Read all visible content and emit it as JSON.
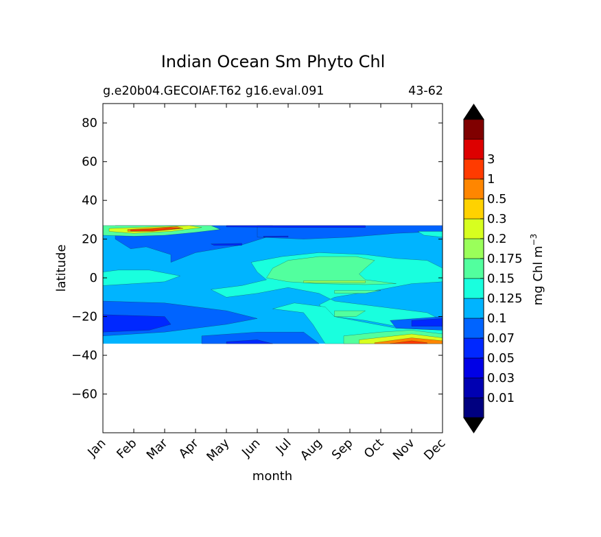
{
  "chart_data": {
    "type": "heatmap",
    "title": "Indian Ocean Sm Phyto Chl",
    "subtitle_left": "g.e20b04.GECOIAF.T62 g16.eval.091",
    "subtitle_right": "43-62",
    "xlabel": "month",
    "ylabel": "latitude",
    "x_ticks": [
      "Jan",
      "Feb",
      "Mar",
      "Apr",
      "May",
      "Jun",
      "Jul",
      "Aug",
      "Sep",
      "Oct",
      "Nov",
      "Dec"
    ],
    "y_ticks": [
      80,
      60,
      40,
      20,
      0,
      -20,
      -40,
      -60
    ],
    "ylim": [
      -80,
      90
    ],
    "data_lat_range": [
      -34,
      27
    ],
    "colorbar": {
      "label": "mg Chl m",
      "label_exponent": "−3",
      "levels": [
        "0.01",
        "0.03",
        "0.05",
        "0.07",
        "0.1",
        "0.125",
        "0.15",
        "0.175",
        "0.2",
        "0.3",
        "0.5",
        "1",
        "3"
      ],
      "colors": [
        "#000080",
        "#0000b2",
        "#0000e6",
        "#0028ff",
        "#0064ff",
        "#00b4ff",
        "#19ffde",
        "#52ff9e",
        "#9aff5a",
        "#d7ff1f",
        "#ffd200",
        "#ff8600",
        "#ff3b00",
        "#dd0000",
        "#800000"
      ],
      "extend": "both",
      "extend_colors": [
        "#000000",
        "#000000"
      ]
    },
    "background_level_color": "#00b4ff",
    "regions": [
      {
        "name": "north-band-low",
        "color": "#0064ff",
        "points": [
          [
            0.4,
            27
          ],
          [
            5.5,
            27
          ],
          [
            5.5,
            22
          ],
          [
            4.5,
            17
          ],
          [
            3,
            13
          ],
          [
            2.2,
            8
          ],
          [
            2.2,
            12
          ],
          [
            1.4,
            16
          ],
          [
            0.9,
            15
          ],
          [
            0.4,
            20
          ]
        ]
      },
      {
        "name": "north-band-mid",
        "color": "#0064ff",
        "points": [
          [
            5,
            27
          ],
          [
            11,
            27
          ],
          [
            11,
            24
          ],
          [
            9.5,
            23
          ],
          [
            8,
            21
          ],
          [
            6.5,
            20
          ],
          [
            5,
            21
          ]
        ]
      },
      {
        "name": "north-east-cyan",
        "color": "#19ffde",
        "points": [
          [
            10.2,
            24
          ],
          [
            11,
            24
          ],
          [
            11,
            21
          ],
          [
            10.4,
            22
          ]
        ]
      },
      {
        "name": "north-arabian-green",
        "color": "#52ff9e",
        "points": [
          [
            0,
            27
          ],
          [
            3.5,
            27
          ],
          [
            3.8,
            25
          ],
          [
            3,
            23.5
          ],
          [
            2,
            22
          ],
          [
            1,
            21.5
          ],
          [
            0,
            22
          ]
        ]
      },
      {
        "name": "north-arabian-yellow",
        "color": "#d7ff1f",
        "points": [
          [
            0.2,
            25.5
          ],
          [
            2.8,
            27
          ],
          [
            3.2,
            26
          ],
          [
            2.2,
            24
          ],
          [
            1,
            23
          ],
          [
            0.2,
            24
          ]
        ]
      },
      {
        "name": "north-arabian-orange",
        "color": "#ff8600",
        "points": [
          [
            0.8,
            25
          ],
          [
            2.4,
            26.5
          ],
          [
            2.6,
            25.5
          ],
          [
            1.6,
            24
          ],
          [
            0.8,
            24
          ]
        ]
      },
      {
        "name": "north-arabian-red",
        "color": "#ff3b00",
        "points": [
          [
            0.9,
            24.8
          ],
          [
            1.6,
            25.2
          ],
          [
            2.2,
            26
          ],
          [
            2.5,
            25.5
          ],
          [
            1.6,
            24.2
          ],
          [
            0.9,
            24.1
          ]
        ]
      },
      {
        "name": "north-arabian-edge",
        "color": "#0028ff",
        "points": [
          [
            4,
            27
          ],
          [
            8.5,
            27
          ],
          [
            8.5,
            26
          ],
          [
            6,
            26
          ],
          [
            4,
            26.3
          ]
        ]
      },
      {
        "name": "north-darkblue-1",
        "color": "#0028ff",
        "points": [
          [
            3.5,
            17.5
          ],
          [
            4.5,
            17.8
          ],
          [
            4.5,
            16.8
          ],
          [
            3.6,
            16.8
          ]
        ]
      },
      {
        "name": "north-darkblue-2",
        "color": "#0028ff",
        "points": [
          [
            5.2,
            21.5
          ],
          [
            6,
            21.6
          ],
          [
            6,
            21
          ],
          [
            5.2,
            21
          ]
        ]
      },
      {
        "name": "equator-cyan",
        "color": "#19ffde",
        "points": [
          [
            3.5,
            -6
          ],
          [
            4.5,
            -4
          ],
          [
            5.3,
            -1
          ],
          [
            5,
            3
          ],
          [
            4.8,
            8
          ],
          [
            5.8,
            11
          ],
          [
            7,
            13
          ],
          [
            8.5,
            12
          ],
          [
            9.5,
            10
          ],
          [
            10.5,
            9
          ],
          [
            11,
            5
          ],
          [
            11,
            -2
          ],
          [
            10,
            -3
          ],
          [
            9,
            -6
          ],
          [
            7.5,
            -10
          ],
          [
            7,
            -14
          ],
          [
            7.5,
            -20
          ],
          [
            8.5,
            -22
          ],
          [
            9.5,
            -25
          ],
          [
            11,
            -26
          ],
          [
            11,
            -22
          ],
          [
            10.5,
            -18
          ],
          [
            9,
            -15
          ],
          [
            7.5,
            -12
          ],
          [
            7,
            -8
          ],
          [
            6,
            -5
          ],
          [
            5,
            -8
          ],
          [
            4,
            -10
          ]
        ]
      },
      {
        "name": "south-lower-cyan",
        "color": "#19ffde",
        "points": [
          [
            5.5,
            -16
          ],
          [
            6.5,
            -18
          ],
          [
            6.8,
            -24
          ],
          [
            7.2,
            -34
          ],
          [
            11,
            -34
          ],
          [
            11,
            -27
          ],
          [
            9.5,
            -26
          ],
          [
            8.5,
            -23
          ],
          [
            7.5,
            -20
          ],
          [
            7.2,
            -15
          ],
          [
            6.2,
            -13
          ]
        ]
      },
      {
        "name": "equator-green",
        "color": "#52ff9e",
        "points": [
          [
            5.3,
            0
          ],
          [
            6,
            -2
          ],
          [
            7,
            -3
          ],
          [
            8.5,
            -3.5
          ],
          [
            9.5,
            -3
          ],
          [
            8.5,
            -1
          ],
          [
            8.3,
            2
          ],
          [
            8.5,
            5
          ],
          [
            8.8,
            9
          ],
          [
            8.2,
            11
          ],
          [
            7,
            11
          ],
          [
            6,
            9
          ],
          [
            5.5,
            5
          ]
        ]
      },
      {
        "name": "equator-green-2",
        "color": "#52ff9e",
        "points": [
          [
            7.5,
            -6.5
          ],
          [
            9,
            -6.5
          ],
          [
            8.5,
            -8
          ],
          [
            7.5,
            -8
          ]
        ]
      },
      {
        "name": "equator-green-3",
        "color": "#52ff9e",
        "points": [
          [
            7.5,
            -17
          ],
          [
            8.5,
            -17
          ],
          [
            8.2,
            -20
          ],
          [
            7.5,
            -20
          ]
        ]
      },
      {
        "name": "equator-yellowgreen",
        "color": "#9aff5a",
        "points": [
          [
            6.5,
            -2.5
          ],
          [
            8.5,
            -2.5
          ],
          [
            8.5,
            -1.5
          ],
          [
            6.5,
            -1.5
          ]
        ]
      },
      {
        "name": "west-equator-green",
        "color": "#52ff9e",
        "points": [
          [
            0,
            -1
          ],
          [
            0.5,
            0
          ],
          [
            1.5,
            1
          ],
          [
            1.2,
            3
          ],
          [
            0.5,
            2.5
          ],
          [
            0,
            2
          ]
        ]
      },
      {
        "name": "west-equator-cyan",
        "color": "#19ffde",
        "points": [
          [
            0,
            -4
          ],
          [
            2,
            -2
          ],
          [
            2.5,
            1
          ],
          [
            1.5,
            4
          ],
          [
            0.5,
            4
          ],
          [
            0,
            3
          ]
        ]
      },
      {
        "name": "south-dark-band",
        "color": "#0064ff",
        "points": [
          [
            0,
            -12
          ],
          [
            2,
            -13
          ],
          [
            4,
            -17
          ],
          [
            5,
            -21
          ],
          [
            4,
            -24
          ],
          [
            2,
            -28
          ],
          [
            0,
            -30
          ]
        ]
      },
      {
        "name": "south-darker",
        "color": "#0028ff",
        "points": [
          [
            0,
            -19
          ],
          [
            2,
            -20
          ],
          [
            2.2,
            -24
          ],
          [
            1.5,
            -27
          ],
          [
            0,
            -28
          ]
        ]
      },
      {
        "name": "south-east-dark",
        "color": "#0064ff",
        "points": [
          [
            9.3,
            -22
          ],
          [
            11,
            -20
          ],
          [
            11,
            -27
          ],
          [
            9.5,
            -26
          ]
        ]
      },
      {
        "name": "south-east-darker",
        "color": "#0028ff",
        "points": [
          [
            10,
            -22
          ],
          [
            11,
            -21
          ],
          [
            11,
            -25
          ],
          [
            10,
            -25
          ]
        ]
      },
      {
        "name": "south-mid-dark",
        "color": "#0064ff",
        "points": [
          [
            3.2,
            -30
          ],
          [
            5,
            -28
          ],
          [
            6.5,
            -28
          ],
          [
            7,
            -34
          ],
          [
            3.2,
            -34
          ]
        ]
      },
      {
        "name": "south-mid-darker",
        "color": "#0028ff",
        "points": [
          [
            4,
            -33
          ],
          [
            5,
            -32
          ],
          [
            5.5,
            -34
          ],
          [
            4,
            -34
          ]
        ]
      },
      {
        "name": "south-east-green",
        "color": "#52ff9e",
        "points": [
          [
            7.8,
            -30
          ],
          [
            9,
            -28
          ],
          [
            10,
            -27
          ],
          [
            11,
            -29
          ],
          [
            11,
            -34
          ],
          [
            7.8,
            -34
          ]
        ]
      },
      {
        "name": "south-east-yellow",
        "color": "#d7ff1f",
        "points": [
          [
            8.3,
            -32
          ],
          [
            10,
            -29
          ],
          [
            11,
            -31
          ],
          [
            11,
            -34
          ],
          [
            8.3,
            -34
          ]
        ]
      },
      {
        "name": "south-east-orange",
        "color": "#ff8600",
        "points": [
          [
            8.8,
            -33.5
          ],
          [
            10,
            -31
          ],
          [
            11,
            -32.5
          ],
          [
            11,
            -34
          ],
          [
            8.8,
            -34
          ]
        ]
      },
      {
        "name": "south-east-red",
        "color": "#ff3b00",
        "points": [
          [
            9.3,
            -34
          ],
          [
            10,
            -32.5
          ],
          [
            10.5,
            -33.5
          ],
          [
            10.5,
            -34
          ]
        ]
      }
    ]
  }
}
